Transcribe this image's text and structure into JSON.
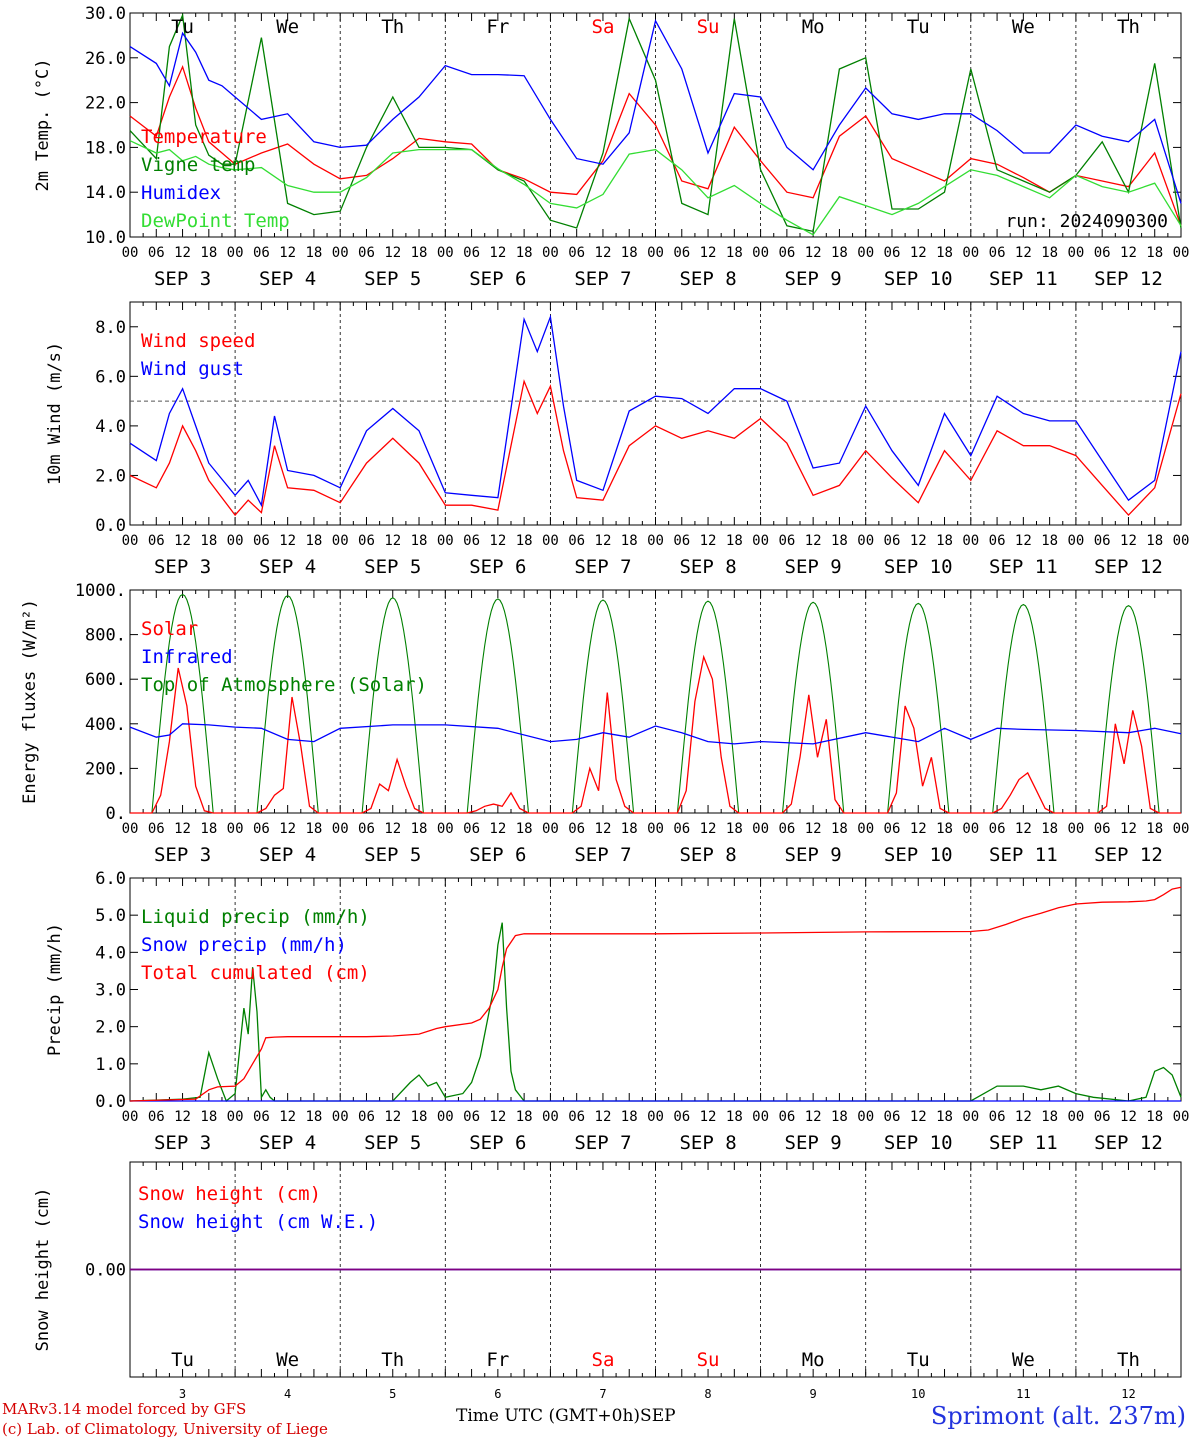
{
  "footer": {
    "line1": "MARv3.14 model forced by GFS",
    "line2": "(c) Lab. of Climatology, University of Liege",
    "station": "Sprimont (alt. 237m)",
    "xlabel": "Time UTC (GMT+0h)",
    "xmonth": "SEP"
  },
  "colors": {
    "red": "#ff0000",
    "green": "#008000",
    "blue": "#0000ff",
    "lime": "#33dd33",
    "purple": "#800080",
    "grey": "#000000"
  },
  "hour_ticks": [
    "00",
    "06",
    "12",
    "18"
  ],
  "day_names": [
    "Tu",
    "We",
    "Th",
    "Fr",
    "Sa",
    "Su",
    "Mo",
    "Tu",
    "We",
    "Th"
  ],
  "weekend_days": [
    4,
    5
  ],
  "date_labels": [
    "SEP  3",
    "SEP  4",
    "SEP  5",
    "SEP  6",
    "SEP  7",
    "SEP  8",
    "SEP  9",
    "SEP 10",
    "SEP 11",
    "SEP 12"
  ],
  "day_numbers": [
    "3",
    "4",
    "5",
    "6",
    "7",
    "8",
    "9",
    "10",
    "11",
    "12"
  ],
  "chart_data": [
    {
      "id": "temperature",
      "type": "line",
      "ylabel": "2m Temp. (°C)",
      "ylim": [
        10,
        30
      ],
      "yticks": [
        "10.0",
        "14.0",
        "18.0",
        "22.0",
        "26.0",
        "30.0"
      ],
      "ytick_values": [
        10,
        14,
        18,
        22,
        26,
        30
      ],
      "annotation": "run: 2024090300",
      "x_hours": [
        0,
        6,
        9,
        12,
        15,
        18,
        21,
        24,
        30,
        36,
        42,
        48,
        54,
        60,
        66,
        72,
        78,
        84,
        90,
        96,
        102,
        108,
        114,
        120,
        126,
        132,
        138,
        144,
        150,
        156,
        162,
        168,
        174,
        180,
        186,
        192,
        198,
        204,
        210,
        216,
        222,
        228,
        234,
        240
      ],
      "series": [
        {
          "name": "Temperature",
          "color": "red",
          "values": [
            20.8,
            19,
            22.5,
            25.2,
            21.5,
            18.5,
            17.5,
            16.5,
            17.5,
            18.3,
            16.5,
            15.2,
            15.5,
            17,
            18.8,
            18.5,
            18.3,
            16,
            15.2,
            14,
            13.8,
            16.8,
            22.8,
            20,
            15,
            14.3,
            19.8,
            16.8,
            14,
            13.5,
            19,
            20.8,
            17,
            16,
            15,
            17,
            16.5,
            15.3,
            14,
            15.5,
            15,
            14.5,
            17.5,
            11
          ]
        },
        {
          "name": "Vigne temp",
          "color": "green",
          "values": [
            19.5,
            17,
            27,
            29.8,
            20,
            17.3,
            16.5,
            16.5,
            27.8,
            13,
            12,
            12.3,
            18,
            22.5,
            18,
            18,
            17.8,
            16,
            15,
            11.5,
            10.8,
            17.5,
            29.5,
            24,
            13,
            12,
            29.5,
            16,
            11,
            10.5,
            25,
            26,
            12.5,
            12.5,
            14,
            25,
            16,
            15,
            14,
            15.5,
            18.5,
            14,
            25.5,
            10.8
          ]
        },
        {
          "name": "Humidex",
          "color": "blue",
          "values": [
            27,
            25.5,
            23.5,
            28.2,
            26.5,
            24,
            23.5,
            22.5,
            20.5,
            21,
            18.5,
            18,
            18.2,
            20.5,
            22.5,
            25.3,
            24.5,
            24.5,
            24.4,
            20.5,
            17,
            16.5,
            19.3,
            29.3,
            25,
            17.5,
            22.8,
            22.5,
            18,
            16,
            20,
            23.3,
            21,
            20.5,
            21,
            21,
            19.5,
            17.5,
            17.5,
            20,
            19,
            18.5,
            20.5,
            13
          ]
        },
        {
          "name": "DewPoint Temp",
          "color": "lime",
          "values": [
            18.6,
            17.5,
            17.8,
            16.8,
            17.2,
            16.5,
            16.2,
            16,
            16.2,
            14.6,
            14,
            14,
            15.3,
            17.5,
            17.8,
            17.8,
            17.8,
            16.1,
            14.7,
            13,
            12.6,
            13.8,
            17.4,
            17.8,
            16,
            13.5,
            14.6,
            13,
            11.5,
            10.2,
            13.6,
            12.8,
            12,
            13,
            14.5,
            16,
            15.5,
            14.5,
            13.5,
            15.5,
            14.5,
            14,
            14.8,
            11
          ]
        }
      ]
    },
    {
      "id": "wind",
      "type": "line",
      "ylabel": "10m Wind (m/s)",
      "ylim": [
        0,
        9
      ],
      "yticks": [
        "0.0",
        "2.0",
        "4.0",
        "6.0",
        "8.0"
      ],
      "ytick_values": [
        0,
        2,
        4,
        6,
        8
      ],
      "reference_line": 5,
      "x_hours": [
        0,
        6,
        9,
        12,
        15,
        18,
        24,
        27,
        30,
        33,
        36,
        42,
        48,
        54,
        60,
        66,
        72,
        78,
        84,
        90,
        93,
        96,
        99,
        102,
        108,
        114,
        120,
        126,
        132,
        138,
        144,
        150,
        156,
        162,
        168,
        174,
        180,
        186,
        192,
        198,
        204,
        210,
        216,
        222,
        228,
        234,
        240
      ],
      "series": [
        {
          "name": "Wind speed",
          "color": "red",
          "values": [
            2,
            1.5,
            2.5,
            4,
            3,
            1.8,
            0.4,
            1,
            0.5,
            3.2,
            1.5,
            1.4,
            0.9,
            2.5,
            3.5,
            2.5,
            0.8,
            0.8,
            0.6,
            5.8,
            4.5,
            5.6,
            3,
            1.1,
            1,
            3.2,
            4,
            3.5,
            3.8,
            3.5,
            4.3,
            3.3,
            1.2,
            1.6,
            3,
            1.9,
            0.9,
            3,
            1.8,
            3.8,
            3.2,
            3.2,
            2.8,
            1.6,
            0.4,
            1.5,
            5.3
          ]
        },
        {
          "name": "Wind gust",
          "color": "blue",
          "values": [
            3.3,
            2.6,
            4.5,
            5.5,
            4,
            2.5,
            1.2,
            1.8,
            0.8,
            4.4,
            2.2,
            2,
            1.5,
            3.8,
            4.7,
            3.8,
            1.3,
            1.2,
            1.1,
            8.3,
            7,
            8.4,
            4.8,
            1.8,
            1.4,
            4.6,
            5.2,
            5.1,
            4.5,
            5.5,
            5.5,
            5,
            2.3,
            2.5,
            4.8,
            3,
            1.6,
            4.5,
            2.8,
            5.2,
            4.5,
            4.2,
            4.2,
            2.6,
            1,
            1.8,
            7
          ]
        }
      ]
    },
    {
      "id": "energy",
      "type": "line",
      "ylabel": "Energy fluxes (W/m²)",
      "ylim": [
        0,
        1000
      ],
      "yticks": [
        "0.",
        "200.",
        "400.",
        "600.",
        "800.",
        "1000."
      ],
      "ytick_values": [
        0,
        200,
        400,
        600,
        800,
        1000
      ],
      "toa_peaks": [
        980,
        975,
        965,
        960,
        955,
        950,
        945,
        940,
        935,
        930
      ],
      "solar_shape": {
        "hours_after_midnight": [
          5,
          7,
          9,
          11,
          13,
          15,
          17,
          19
        ],
        "days": [
          [
            0,
            80,
            320,
            650,
            480,
            120,
            10,
            0
          ],
          [
            0,
            20,
            80,
            110,
            520,
            300,
            30,
            0
          ],
          [
            0,
            20,
            130,
            100,
            240,
            120,
            20,
            0
          ],
          [
            0,
            10,
            30,
            40,
            30,
            90,
            20,
            0
          ],
          [
            0,
            30,
            200,
            100,
            540,
            150,
            30,
            0
          ],
          [
            0,
            100,
            500,
            700,
            600,
            250,
            30,
            0
          ],
          [
            0,
            40,
            250,
            530,
            250,
            420,
            60,
            0
          ],
          [
            0,
            90,
            480,
            380,
            120,
            250,
            20,
            0
          ],
          [
            0,
            20,
            80,
            150,
            180,
            100,
            20,
            0
          ],
          [
            0,
            30,
            400,
            220,
            460,
            300,
            20,
            0
          ]
        ]
      },
      "series": [
        {
          "name": "Solar",
          "color": "red"
        },
        {
          "name": "Infrared",
          "color": "blue",
          "x_hours": [
            0,
            6,
            9,
            12,
            18,
            24,
            30,
            36,
            42,
            48,
            60,
            72,
            84,
            96,
            102,
            108,
            114,
            120,
            126,
            132,
            138,
            144,
            156,
            168,
            180,
            186,
            192,
            198,
            204,
            216,
            228,
            234,
            240
          ],
          "values": [
            385,
            340,
            350,
            400,
            395,
            385,
            380,
            330,
            320,
            380,
            395,
            395,
            380,
            320,
            330,
            360,
            340,
            390,
            360,
            320,
            310,
            320,
            310,
            360,
            320,
            380,
            330,
            380,
            375,
            370,
            360,
            380,
            355
          ]
        },
        {
          "name": "Top of Atmosphere (Solar)",
          "color": "green"
        }
      ]
    },
    {
      "id": "precip",
      "type": "line",
      "ylabel": "Precip (mm/h)",
      "ylim": [
        0,
        6
      ],
      "yticks": [
        "0.0",
        "1.0",
        "2.0",
        "3.0",
        "4.0",
        "5.0",
        "6.0"
      ],
      "ytick_values": [
        0,
        1,
        2,
        3,
        4,
        5,
        6
      ],
      "series": [
        {
          "name": "Liquid precip (mm/h)",
          "color": "green",
          "x_hours": [
            0,
            12,
            16,
            18,
            20,
            22,
            24,
            26,
            27,
            28,
            29,
            30,
            31,
            32,
            33,
            34,
            36,
            48,
            60,
            64,
            66,
            68,
            70,
            72,
            76,
            78,
            80,
            82,
            83,
            84,
            85,
            86,
            87,
            88,
            90,
            96,
            120,
            168,
            192,
            198,
            204,
            208,
            212,
            216,
            220,
            228,
            232,
            234,
            236,
            238,
            240
          ],
          "values": [
            0,
            0.05,
            0.1,
            1.3,
            0.6,
            0,
            0.2,
            2.5,
            1.8,
            3.6,
            2.4,
            0.1,
            0.3,
            0.1,
            0,
            0,
            0,
            0,
            0,
            0.5,
            0.7,
            0.4,
            0.5,
            0.1,
            0.2,
            0.5,
            1.2,
            2.4,
            3,
            4.2,
            4.8,
            2.5,
            0.8,
            0.3,
            0,
            0,
            0,
            0,
            0,
            0.4,
            0.4,
            0.3,
            0.4,
            0.2,
            0.1,
            0,
            0.1,
            0.8,
            0.9,
            0.7,
            0.1
          ]
        },
        {
          "name": "Snow precip (mm/h)",
          "color": "blue",
          "x_hours": [
            0,
            240
          ],
          "values": [
            0,
            0
          ]
        },
        {
          "name": "Total cumulated (cm)",
          "color": "red",
          "x_hours": [
            0,
            15,
            18,
            20,
            24,
            26,
            28,
            30,
            31,
            33,
            36,
            48,
            54,
            60,
            66,
            70,
            72,
            78,
            80,
            82,
            84,
            85,
            86,
            88,
            90,
            96,
            120,
            144,
            168,
            192,
            196,
            200,
            204,
            208,
            212,
            216,
            222,
            228,
            232,
            234,
            236,
            238,
            240
          ],
          "values": [
            0,
            0.05,
            0.3,
            0.38,
            0.4,
            0.6,
            1.0,
            1.4,
            1.7,
            1.72,
            1.73,
            1.73,
            1.73,
            1.75,
            1.8,
            1.95,
            2.0,
            2.1,
            2.2,
            2.5,
            3.0,
            3.6,
            4.1,
            4.45,
            4.5,
            4.5,
            4.5,
            4.52,
            4.55,
            4.56,
            4.6,
            4.75,
            4.92,
            5.05,
            5.2,
            5.3,
            5.35,
            5.36,
            5.38,
            5.42,
            5.55,
            5.7,
            5.75
          ]
        }
      ]
    },
    {
      "id": "snow",
      "type": "line",
      "ylabel": "Snow height (cm)",
      "ylim": [
        -1,
        1
      ],
      "yticks": [
        "0.00"
      ],
      "ytick_values": [
        0
      ],
      "series": [
        {
          "name": "Snow height (cm)",
          "color": "red",
          "x_hours": [
            0,
            240
          ],
          "values": [
            0,
            0
          ]
        },
        {
          "name": "Snow height (cm W.E.)",
          "color": "blue",
          "x_hours": [
            0,
            240
          ],
          "values": [
            0,
            0
          ]
        }
      ]
    }
  ]
}
